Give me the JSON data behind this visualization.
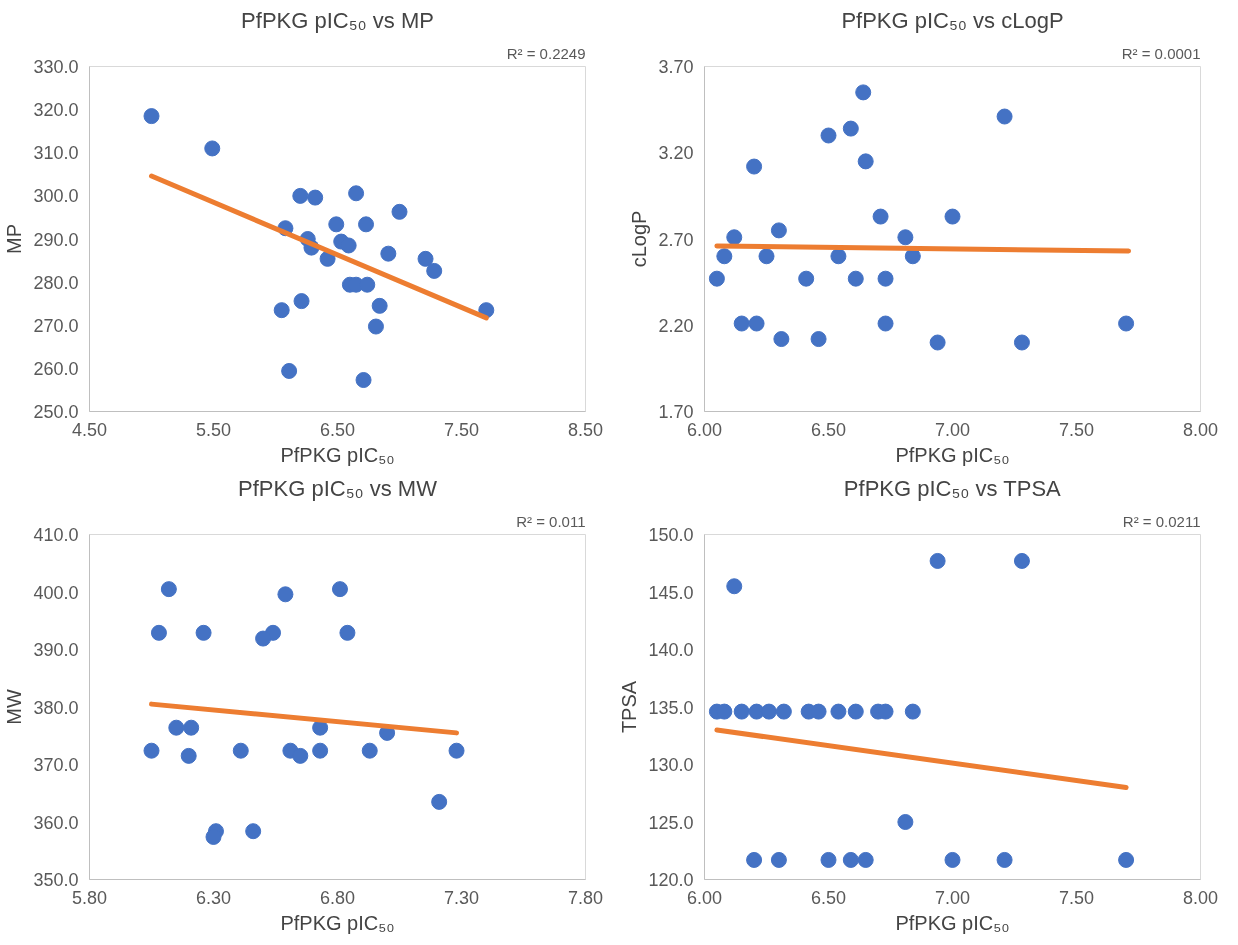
{
  "chart_data": [
    {
      "type": "scatter",
      "title": "PfPKG pIC₅₀ vs MP",
      "xlabel": "PfPKG pIC₅₀",
      "ylabel": "MP",
      "annotations": [
        "R² = 0.2249"
      ],
      "xlim": [
        4.5,
        8.5
      ],
      "xticks": [
        {
          "value": 4.5,
          "label": "4.50"
        },
        {
          "value": 5.5,
          "label": "5.50"
        },
        {
          "value": 6.5,
          "label": "6.50"
        },
        {
          "value": 7.5,
          "label": "7.50"
        },
        {
          "value": 8.5,
          "label": "8.50"
        }
      ],
      "ylim": [
        250,
        330
      ],
      "yticks": [
        {
          "value": 250,
          "label": "250.0"
        },
        {
          "value": 260,
          "label": "260.0"
        },
        {
          "value": 270,
          "label": "270.0"
        },
        {
          "value": 280,
          "label": "280.0"
        },
        {
          "value": 290,
          "label": "290.0"
        },
        {
          "value": 300,
          "label": "300.0"
        },
        {
          "value": 310,
          "label": "310.0"
        },
        {
          "value": 320,
          "label": "320.0"
        },
        {
          "value": 330,
          "label": "330.0"
        }
      ],
      "grid": false,
      "series": [
        {
          "marker": "circle",
          "color": "#4472c4",
          "x": [
            5.0,
            5.49,
            6.2,
            6.32,
            6.65,
            7.0,
            6.49,
            6.73,
            6.08,
            6.26,
            6.53,
            6.59,
            6.29,
            6.42,
            6.91,
            7.21,
            7.28,
            6.6,
            6.65,
            6.74,
            6.21,
            6.05,
            6.84,
            6.81,
            7.7,
            6.11,
            6.71
          ],
          "values": [
            318.5,
            311.0,
            300.0,
            299.6,
            300.6,
            296.3,
            293.4,
            293.4,
            292.5,
            290.0,
            289.4,
            288.5,
            288.0,
            285.4,
            286.6,
            285.4,
            282.6,
            279.4,
            279.4,
            279.4,
            275.6,
            273.5,
            274.5,
            269.7,
            273.5,
            259.4,
            257.3
          ]
        },
        {
          "type": "line",
          "color": "#ed7d31",
          "x": [
            5.0,
            7.7
          ],
          "values": [
            304.6,
            271.7
          ]
        }
      ]
    },
    {
      "type": "scatter",
      "title": "PfPKG pIC₅₀ vs cLogP",
      "xlabel": "PfPKG pIC₅₀",
      "ylabel": "cLogP",
      "annotations": [
        "R² = 0.0001"
      ],
      "xlim": [
        6.0,
        8.0
      ],
      "xticks": [
        {
          "value": 6.0,
          "label": "6.00"
        },
        {
          "value": 6.5,
          "label": "6.50"
        },
        {
          "value": 7.0,
          "label": "7.00"
        },
        {
          "value": 7.5,
          "label": "7.50"
        },
        {
          "value": 8.0,
          "label": "8.00"
        }
      ],
      "ylim": [
        1.7,
        3.7
      ],
      "yticks": [
        {
          "value": 1.7,
          "label": "1.70"
        },
        {
          "value": 2.2,
          "label": "2.20"
        },
        {
          "value": 2.7,
          "label": "2.70"
        },
        {
          "value": 3.2,
          "label": "3.20"
        },
        {
          "value": 3.7,
          "label": "3.70"
        }
      ],
      "grid": false,
      "series": [
        {
          "marker": "circle",
          "color": "#4472c4",
          "x": [
            6.64,
            7.21,
            6.5,
            6.59,
            6.65,
            6.2,
            6.71,
            7.0,
            6.3,
            6.12,
            6.81,
            6.08,
            6.25,
            6.54,
            6.84,
            6.05,
            6.41,
            6.61,
            6.73,
            6.15,
            6.21,
            6.73,
            7.7,
            6.31,
            6.46,
            6.94,
            7.28
          ],
          "values": [
            3.55,
            3.41,
            3.3,
            3.34,
            3.15,
            3.12,
            2.83,
            2.83,
            2.75,
            2.71,
            2.71,
            2.6,
            2.6,
            2.6,
            2.6,
            2.47,
            2.47,
            2.47,
            2.47,
            2.21,
            2.21,
            2.21,
            2.21,
            2.12,
            2.12,
            2.1,
            2.1
          ]
        },
        {
          "type": "line",
          "color": "#ed7d31",
          "x": [
            6.05,
            7.71
          ],
          "values": [
            2.66,
            2.63
          ]
        }
      ]
    },
    {
      "type": "scatter",
      "title": "PfPKG pIC₅₀ vs MW",
      "xlabel": "PfPKG pIC₅₀",
      "ylabel": "MW",
      "annotations": [
        "R² = 0.011"
      ],
      "xlim": [
        5.8,
        7.8
      ],
      "xticks": [
        {
          "value": 5.8,
          "label": "5.80"
        },
        {
          "value": 6.3,
          "label": "6.30"
        },
        {
          "value": 6.8,
          "label": "6.80"
        },
        {
          "value": 7.3,
          "label": "7.30"
        },
        {
          "value": 7.8,
          "label": "7.80"
        }
      ],
      "ylim": [
        350,
        410
      ],
      "yticks": [
        {
          "value": 350,
          "label": "350.0"
        },
        {
          "value": 360,
          "label": "360.0"
        },
        {
          "value": 370,
          "label": "370.0"
        },
        {
          "value": 380,
          "label": "380.0"
        },
        {
          "value": 390,
          "label": "390.0"
        },
        {
          "value": 400,
          "label": "400.0"
        },
        {
          "value": 410,
          "label": "410.0"
        }
      ],
      "grid": false,
      "series": [
        {
          "marker": "circle",
          "color": "#4472c4",
          "x": [
            6.12,
            6.81,
            6.59,
            6.08,
            6.26,
            6.54,
            6.5,
            6.84,
            6.15,
            6.21,
            6.73,
            7.0,
            6.05,
            6.41,
            6.61,
            6.73,
            6.93,
            7.28,
            6.2,
            6.65,
            7.21,
            6.31,
            6.3,
            6.46
          ],
          "values": [
            400.5,
            400.5,
            399.6,
            392.9,
            392.9,
            392.9,
            391.9,
            392.9,
            376.4,
            376.4,
            376.4,
            375.5,
            372.4,
            372.4,
            372.4,
            372.4,
            372.4,
            372.4,
            371.5,
            371.5,
            363.5,
            358.4,
            357.4,
            358.4
          ]
        },
        {
          "type": "line",
          "color": "#ed7d31",
          "x": [
            6.05,
            7.28
          ],
          "values": [
            380.5,
            375.5
          ]
        }
      ]
    },
    {
      "type": "scatter",
      "title": "PfPKG pIC₅₀ vs TPSA",
      "xlabel": "PfPKG pIC₅₀",
      "ylabel": "TPSA",
      "annotations": [
        "R² = 0.0211"
      ],
      "xlim": [
        6.0,
        8.0
      ],
      "xticks": [
        {
          "value": 6.0,
          "label": "6.00"
        },
        {
          "value": 6.5,
          "label": "6.50"
        },
        {
          "value": 7.0,
          "label": "7.00"
        },
        {
          "value": 7.5,
          "label": "7.50"
        },
        {
          "value": 8.0,
          "label": "8.00"
        }
      ],
      "ylim": [
        120,
        150
      ],
      "yticks": [
        {
          "value": 120,
          "label": "120.0"
        },
        {
          "value": 125,
          "label": "125.0"
        },
        {
          "value": 130,
          "label": "130.0"
        },
        {
          "value": 135,
          "label": "135.0"
        },
        {
          "value": 140,
          "label": "140.0"
        },
        {
          "value": 145,
          "label": "145.0"
        },
        {
          "value": 150,
          "label": "150.0"
        }
      ],
      "grid": false,
      "series": [
        {
          "marker": "circle",
          "color": "#4472c4",
          "x": [
            6.94,
            7.28,
            6.12,
            6.05,
            6.08,
            6.15,
            6.21,
            6.26,
            6.32,
            6.42,
            6.46,
            6.54,
            6.61,
            6.7,
            6.73,
            6.84,
            6.81,
            6.2,
            6.3,
            6.5,
            6.59,
            6.65,
            7.0,
            7.21,
            7.7
          ],
          "values": [
            147.7,
            147.7,
            145.5,
            134.6,
            134.6,
            134.6,
            134.6,
            134.6,
            134.6,
            134.6,
            134.6,
            134.6,
            134.6,
            134.6,
            134.6,
            134.6,
            125.0,
            121.7,
            121.7,
            121.7,
            121.7,
            121.7,
            121.7,
            121.7,
            121.7
          ]
        },
        {
          "type": "line",
          "color": "#ed7d31",
          "x": [
            6.05,
            7.7
          ],
          "values": [
            133.0,
            128.0
          ]
        }
      ]
    }
  ]
}
